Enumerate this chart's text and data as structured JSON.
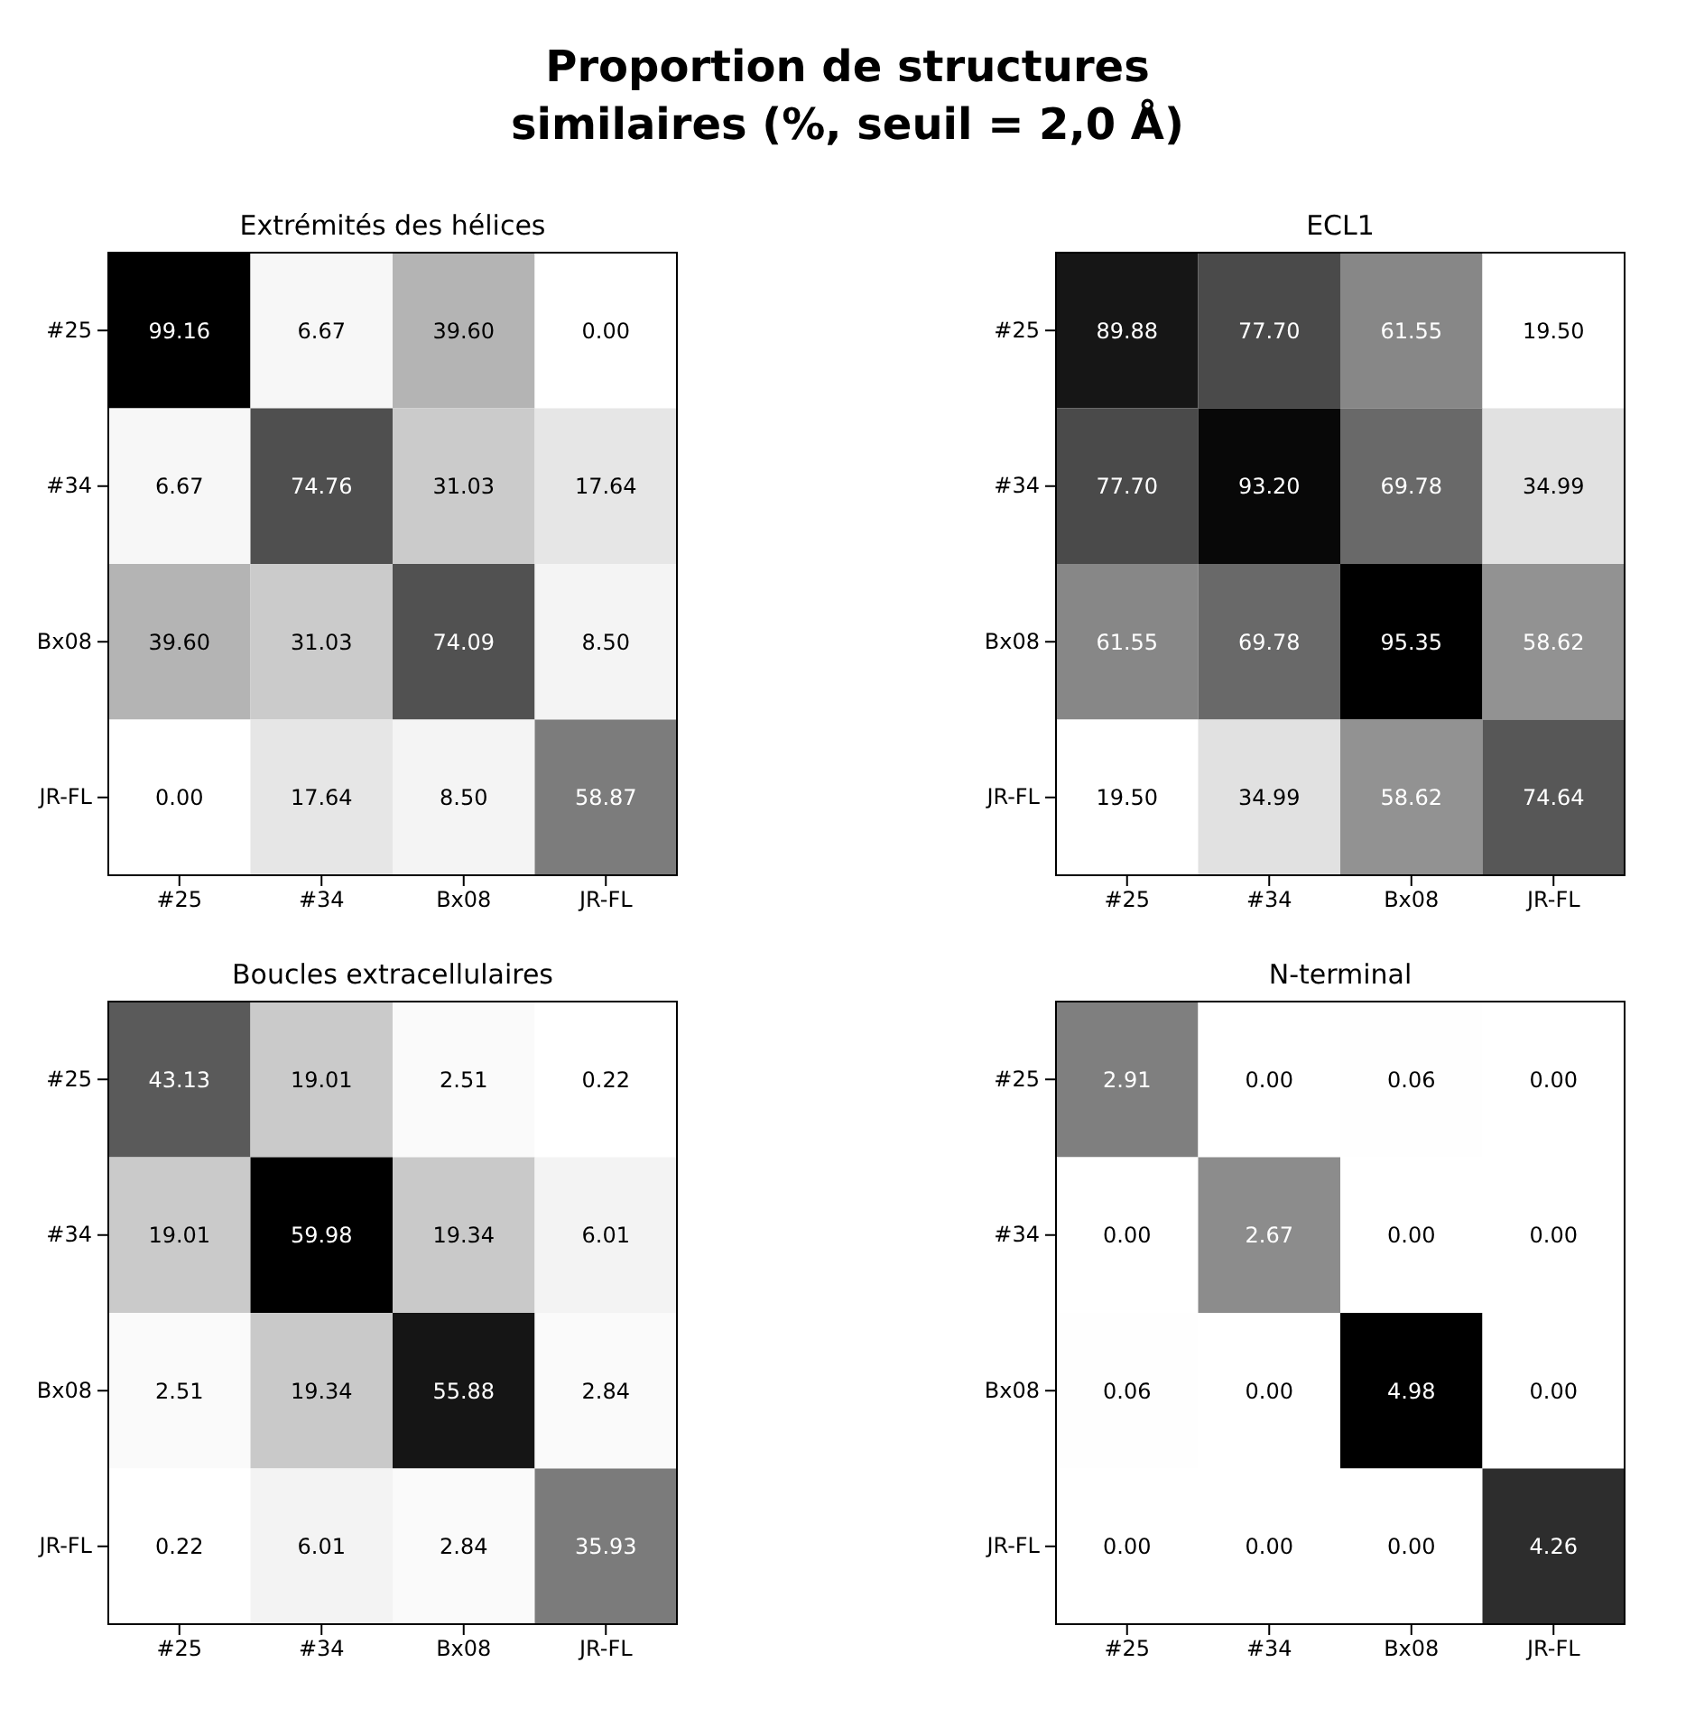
{
  "chart_data": [
    {
      "type": "heatmap",
      "title": "Extrémités des hélices",
      "annotations": [
        "Proportion de structures similaires (%, seuil = 2,0 Å)"
      ],
      "categories": [
        "#25",
        "#34",
        "Bx08",
        "JR-FL"
      ],
      "y_categories": [
        "#25",
        "#34",
        "Bx08",
        "JR-FL"
      ],
      "cells": [
        [
          99.16,
          6.67,
          39.6,
          0.0
        ],
        [
          6.67,
          74.76,
          31.03,
          17.64
        ],
        [
          39.6,
          31.03,
          74.09,
          8.5
        ],
        [
          0.0,
          17.64,
          8.5,
          58.87
        ]
      ],
      "cell_labels": [
        [
          "99.16",
          "6.67",
          "39.60",
          "0.00"
        ],
        [
          "6.67",
          "74.76",
          "31.03",
          "17.64"
        ],
        [
          "39.60",
          "31.03",
          "74.09",
          "8.50"
        ],
        [
          "0.00",
          "17.64",
          "8.50",
          "58.87"
        ]
      ]
    },
    {
      "type": "heatmap",
      "title": "ECL1",
      "categories": [
        "#25",
        "#34",
        "Bx08",
        "JR-FL"
      ],
      "y_categories": [
        "#25",
        "#34",
        "Bx08",
        "JR-FL"
      ],
      "cells": [
        [
          89.88,
          77.7,
          61.55,
          19.5
        ],
        [
          77.7,
          93.2,
          69.78,
          34.99
        ],
        [
          61.55,
          69.78,
          95.35,
          58.62
        ],
        [
          19.5,
          34.99,
          58.62,
          74.64
        ]
      ],
      "cell_labels": [
        [
          "89.88",
          "77.70",
          "61.55",
          "19.50"
        ],
        [
          "77.70",
          "93.20",
          "69.78",
          "34.99"
        ],
        [
          "61.55",
          "69.78",
          "95.35",
          "58.62"
        ],
        [
          "19.50",
          "34.99",
          "58.62",
          "74.64"
        ]
      ]
    },
    {
      "type": "heatmap",
      "title": "Boucles extracellulaires",
      "categories": [
        "#25",
        "#34",
        "Bx08",
        "JR-FL"
      ],
      "y_categories": [
        "#25",
        "#34",
        "Bx08",
        "JR-FL"
      ],
      "cells": [
        [
          43.13,
          19.01,
          2.51,
          0.22
        ],
        [
          19.01,
          59.98,
          19.34,
          6.01
        ],
        [
          2.51,
          19.34,
          55.88,
          2.84
        ],
        [
          0.22,
          6.01,
          2.84,
          35.93
        ]
      ],
      "cell_labels": [
        [
          "43.13",
          "19.01",
          "2.51",
          "0.22"
        ],
        [
          "19.01",
          "59.98",
          "19.34",
          "6.01"
        ],
        [
          "2.51",
          "19.34",
          "55.88",
          "2.84"
        ],
        [
          "0.22",
          "6.01",
          "2.84",
          "35.93"
        ]
      ]
    },
    {
      "type": "heatmap",
      "title": "N-terminal",
      "categories": [
        "#25",
        "#34",
        "Bx08",
        "JR-FL"
      ],
      "y_categories": [
        "#25",
        "#34",
        "Bx08",
        "JR-FL"
      ],
      "cells": [
        [
          2.91,
          0.0,
          0.06,
          0.0
        ],
        [
          0.0,
          2.67,
          0.0,
          0.0
        ],
        [
          0.06,
          0.0,
          4.98,
          0.0
        ],
        [
          0.0,
          0.0,
          0.0,
          4.26
        ]
      ],
      "cell_labels": [
        [
          "2.91",
          "0.00",
          "0.06",
          "0.00"
        ],
        [
          "0.00",
          "2.67",
          "0.00",
          "0.00"
        ],
        [
          "0.06",
          "0.00",
          "4.98",
          "0.00"
        ],
        [
          "0.00",
          "0.00",
          "0.00",
          "4.26"
        ]
      ]
    }
  ]
}
